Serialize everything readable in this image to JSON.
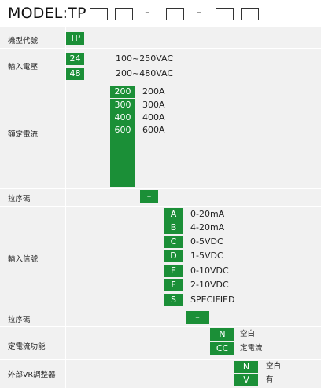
{
  "model": {
    "title": "MODEL:TP",
    "dash": "-"
  },
  "rows": {
    "model_code": {
      "label": "機型代號",
      "code": "TP"
    },
    "input_voltage": {
      "label": "輸入電壓",
      "options": [
        {
          "code": "24",
          "desc": "100~250VAC"
        },
        {
          "code": "48",
          "desc": "200~480VAC"
        }
      ]
    },
    "rated_current": {
      "label": "額定電流",
      "options": [
        {
          "code": "200",
          "desc": "200A"
        },
        {
          "code": "300",
          "desc": "300A"
        },
        {
          "code": "400",
          "desc": "400A"
        },
        {
          "code": "600",
          "desc": "600A"
        },
        {
          "code": "",
          "desc": ""
        },
        {
          "code": "",
          "desc": ""
        },
        {
          "code": "",
          "desc": ""
        },
        {
          "code": "",
          "desc": ""
        }
      ]
    },
    "dash1": {
      "label": "拉序碼",
      "code": "–"
    },
    "input_signal": {
      "label": "輸入信號",
      "options": [
        {
          "code": "A",
          "desc": "0-20mA"
        },
        {
          "code": "B",
          "desc": "4-20mA"
        },
        {
          "code": "C",
          "desc": "0-5VDC"
        },
        {
          "code": "D",
          "desc": "1-5VDC"
        },
        {
          "code": "E",
          "desc": "0-10VDC"
        },
        {
          "code": "F",
          "desc": "2-10VDC"
        },
        {
          "code": "S",
          "desc": "SPECIFIED"
        }
      ]
    },
    "dash2": {
      "label": "拉序碼",
      "code": "–"
    },
    "constant_current": {
      "label": "定電流功能",
      "options": [
        {
          "code": "N",
          "desc": "空白"
        },
        {
          "code": "CC",
          "desc": "定電流"
        }
      ]
    },
    "external_vr": {
      "label": "外部VR調整器",
      "options": [
        {
          "code": "N",
          "desc": "空白"
        },
        {
          "code": "V",
          "desc": "有"
        }
      ]
    }
  },
  "colors": {
    "code_bg": "#1b8f37",
    "row_bg": "#f1f1f1"
  }
}
